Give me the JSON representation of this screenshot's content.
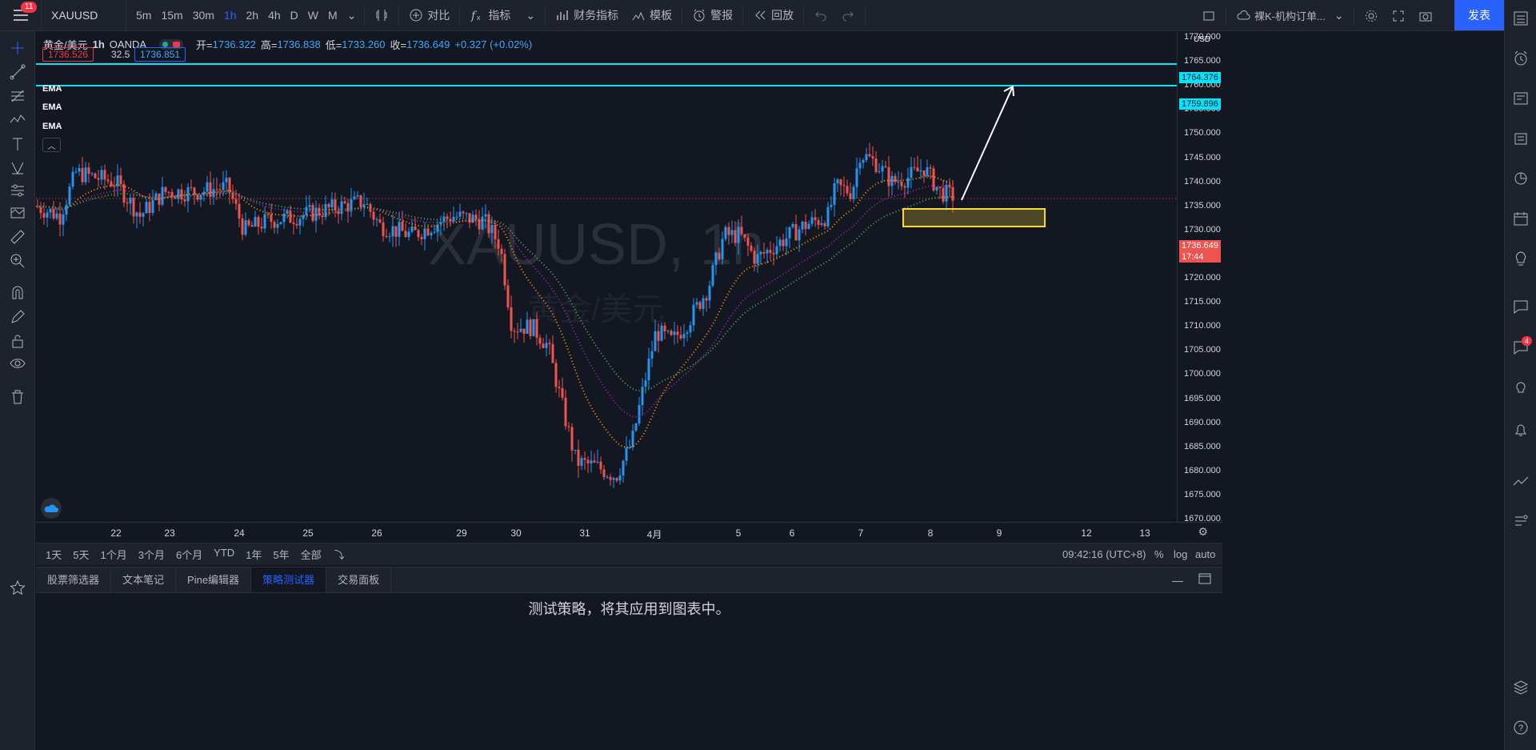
{
  "topbar": {
    "notifications": "11",
    "symbol": "XAUUSD",
    "intervals": [
      "5m",
      "15m",
      "30m",
      "1h",
      "2h",
      "4h",
      "D",
      "W",
      "M"
    ],
    "active_interval": "1h",
    "compare": "对比",
    "indicators": "指标",
    "financials": "财务指标",
    "templates": "模板",
    "alert": "警报",
    "replay": "回放",
    "layout_name": "裸K-机构订单...",
    "publish": "发表"
  },
  "legend": {
    "name": "黄金/美元",
    "interval": "1h",
    "source": "OANDA",
    "open_label": "开=",
    "open": "1736.322",
    "high_label": "高=",
    "high": "1736.838",
    "low_label": "低=",
    "low": "1733.260",
    "close_label": "收=",
    "close": "1736.649",
    "change": "+0.327 (+0.02%)",
    "bid": "1736.526",
    "spread": "32.5",
    "ask": "1736.851",
    "ema_labels": [
      "EMA",
      "EMA",
      "EMA"
    ]
  },
  "watermark": {
    "symbol": "XAUUSD, 1h",
    "name": "黄金/美元"
  },
  "price_axis": {
    "currency": "USD",
    "ticks": [
      "1770.000",
      "1765.000",
      "1760.000",
      "1755.000",
      "1750.000",
      "1745.000",
      "1740.000",
      "1735.000",
      "1730.000",
      "1725.000",
      "1720.000",
      "1715.000",
      "1710.000",
      "1705.000",
      "1700.000",
      "1695.000",
      "1690.000",
      "1685.000",
      "1680.000",
      "1675.000",
      "1670.000"
    ],
    "line1": "1764.376",
    "line2": "1759.896",
    "current": "1736.649",
    "countdown": "17:44"
  },
  "time_axis": {
    "labels": [
      "22",
      "23",
      "24",
      "25",
      "26",
      "29",
      "30",
      "31",
      "4月",
      "5",
      "6",
      "7",
      "8",
      "9",
      "12",
      "13"
    ]
  },
  "bottom_range": {
    "ranges": [
      "1天",
      "5天",
      "1个月",
      "3个月",
      "6个月",
      "YTD",
      "1年",
      "5年",
      "全部"
    ],
    "clock": "09:42:16 (UTC+8)",
    "percent": "%",
    "log": "log",
    "auto": "auto"
  },
  "bottom_tabs": {
    "tabs": [
      "股票筛选器",
      "文本笔记",
      "Pine编辑器",
      "策略测试器",
      "交易面板"
    ],
    "active": "策略测试器"
  },
  "panel": {
    "message": "测试策略，将其应用到图表中。"
  },
  "colors": {
    "up": "#26a69a",
    "down": "#ef5350",
    "ema_fast": "#ff9800",
    "ema_mid": "#9c27b0",
    "ema_slow": "#4caf50",
    "hline": "#00e5ff",
    "zone": "#fdd835",
    "accent": "#2962ff"
  }
}
